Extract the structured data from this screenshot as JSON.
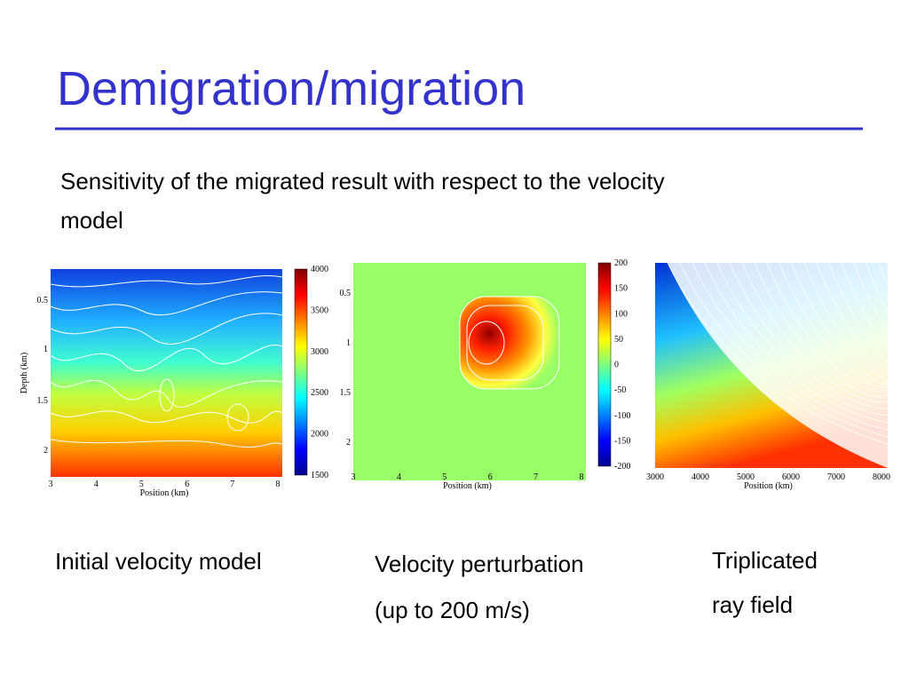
{
  "header": {
    "title": "Demigration/migration"
  },
  "body": {
    "text": "Sensitivity of the migrated result with respect to the velocity model"
  },
  "panels": [
    {
      "xlabel": "Position (km)",
      "ylabel": "Depth (km)",
      "xticks": [
        3,
        4,
        5,
        6,
        7,
        8
      ],
      "yticks": [
        0.5,
        1,
        1.5,
        2
      ],
      "colorbar_ticks": [
        4000,
        3500,
        3000,
        2500,
        2000,
        1500
      ],
      "caption": "Initial velocity model"
    },
    {
      "xlabel": "Position (km)",
      "xticks": [
        3,
        4,
        5,
        6,
        7,
        8
      ],
      "yticks": [
        0.5,
        1,
        1.5,
        2
      ],
      "colorbar_ticks": [
        200,
        150,
        100,
        50,
        0,
        -50,
        -100,
        -150,
        -200
      ],
      "caption_lines": [
        "Velocity perturbation",
        "(up to 200 m/s)"
      ]
    },
    {
      "xlabel": "Position (km)",
      "xticks": [
        3000,
        4000,
        5000,
        6000,
        7000,
        8000
      ],
      "caption_lines": [
        "Triplicated",
        "ray field"
      ]
    }
  ]
}
